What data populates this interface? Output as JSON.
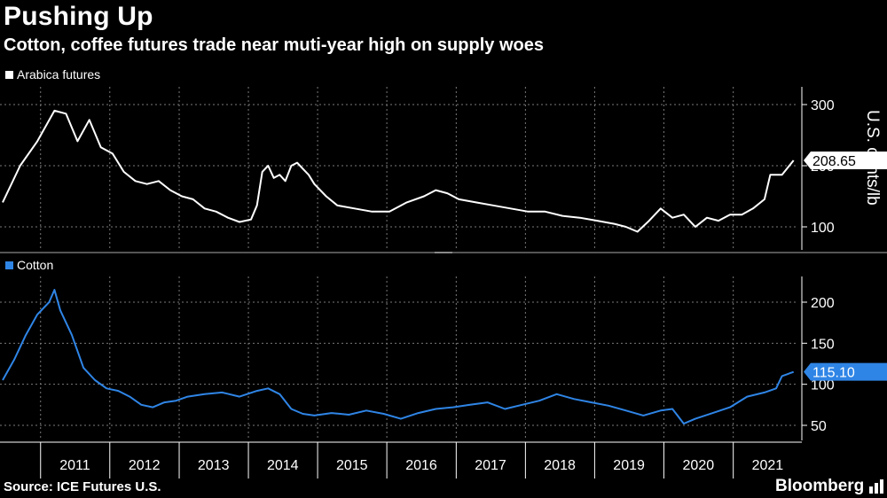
{
  "header": {
    "title": "Pushing Up",
    "subtitle": "Cotton, coffee futures trade near muti-year high on supply woes"
  },
  "footer": {
    "source": "Source: ICE Futures U.S.",
    "brand": "Bloomberg"
  },
  "colors": {
    "background": "#000000",
    "arabica": "#ffffff",
    "cotton": "#2f85e6",
    "grid": "#7a7a7a"
  },
  "chart_data": [
    {
      "type": "line",
      "id": "arabica",
      "series": [
        {
          "name": "Arabica futures",
          "x": [
            "2010-06",
            "2010-09",
            "2010-12",
            "2011-03",
            "2011-05",
            "2011-07",
            "2011-09",
            "2011-11",
            "2012-01",
            "2012-03",
            "2012-05",
            "2012-07",
            "2012-09",
            "2012-11",
            "2013-01",
            "2013-03",
            "2013-05",
            "2013-07",
            "2013-09",
            "2013-11",
            "2014-01",
            "2014-02",
            "2014-03",
            "2014-04",
            "2014-05",
            "2014-06",
            "2014-07",
            "2014-08",
            "2014-09",
            "2014-10",
            "2014-11",
            "2014-12",
            "2015-02",
            "2015-04",
            "2015-07",
            "2015-10",
            "2016-01",
            "2016-04",
            "2016-07",
            "2016-09",
            "2016-11",
            "2017-01",
            "2017-04",
            "2017-07",
            "2017-10",
            "2018-01",
            "2018-04",
            "2018-07",
            "2018-10",
            "2019-01",
            "2019-04",
            "2019-06",
            "2019-08",
            "2019-10",
            "2019-12",
            "2020-02",
            "2020-04",
            "2020-06",
            "2020-08",
            "2020-10",
            "2020-12",
            "2021-02",
            "2021-04",
            "2021-06",
            "2021-07",
            "2021-09",
            "2021-11"
          ],
          "values": [
            140,
            200,
            240,
            290,
            285,
            240,
            275,
            230,
            220,
            190,
            175,
            170,
            175,
            160,
            150,
            145,
            130,
            125,
            115,
            108,
            112,
            135,
            190,
            200,
            180,
            185,
            175,
            200,
            205,
            195,
            185,
            170,
            150,
            135,
            130,
            125,
            125,
            140,
            150,
            160,
            155,
            145,
            140,
            135,
            130,
            125,
            125,
            118,
            115,
            110,
            105,
            100,
            92,
            110,
            130,
            115,
            120,
            100,
            115,
            110,
            120,
            120,
            130,
            145,
            185,
            185,
            208.65
          ],
          "last_value_label": "208.65"
        }
      ],
      "ylabel": "U.S. cents/lb",
      "yticks": [
        "300",
        "200",
        "100"
      ],
      "ylim": [
        80,
        310
      ]
    },
    {
      "type": "line",
      "id": "cotton",
      "series": [
        {
          "name": "Cotton",
          "x": [
            "2010-06",
            "2010-08",
            "2010-10",
            "2010-12",
            "2011-02",
            "2011-03",
            "2011-04",
            "2011-06",
            "2011-08",
            "2011-10",
            "2011-12",
            "2012-02",
            "2012-04",
            "2012-06",
            "2012-08",
            "2012-10",
            "2012-12",
            "2013-02",
            "2013-05",
            "2013-08",
            "2013-11",
            "2014-02",
            "2014-04",
            "2014-06",
            "2014-08",
            "2014-10",
            "2014-12",
            "2015-03",
            "2015-06",
            "2015-09",
            "2015-12",
            "2016-03",
            "2016-06",
            "2016-09",
            "2016-12",
            "2017-03",
            "2017-06",
            "2017-09",
            "2017-12",
            "2018-03",
            "2018-06",
            "2018-09",
            "2018-12",
            "2019-03",
            "2019-06",
            "2019-09",
            "2019-12",
            "2020-02",
            "2020-04",
            "2020-06",
            "2020-09",
            "2020-12",
            "2021-03",
            "2021-06",
            "2021-08",
            "2021-09",
            "2021-11"
          ],
          "values": [
            105,
            130,
            160,
            185,
            200,
            215,
            190,
            160,
            120,
            105,
            95,
            92,
            85,
            75,
            72,
            78,
            80,
            85,
            88,
            90,
            85,
            92,
            95,
            88,
            70,
            64,
            62,
            65,
            63,
            68,
            64,
            58,
            65,
            70,
            72,
            75,
            78,
            70,
            75,
            80,
            88,
            82,
            78,
            74,
            68,
            62,
            68,
            70,
            52,
            58,
            65,
            72,
            85,
            90,
            95,
            110,
            115.1
          ],
          "last_value_label": "115.10"
        }
      ],
      "yticks": [
        "200",
        "150",
        "100",
        "50"
      ],
      "ylim": [
        40,
        225
      ]
    }
  ],
  "x_axis": {
    "tick_labels": [
      "2011",
      "2012",
      "2013",
      "2014",
      "2015",
      "2016",
      "2017",
      "2018",
      "2019",
      "2020",
      "2021"
    ]
  }
}
